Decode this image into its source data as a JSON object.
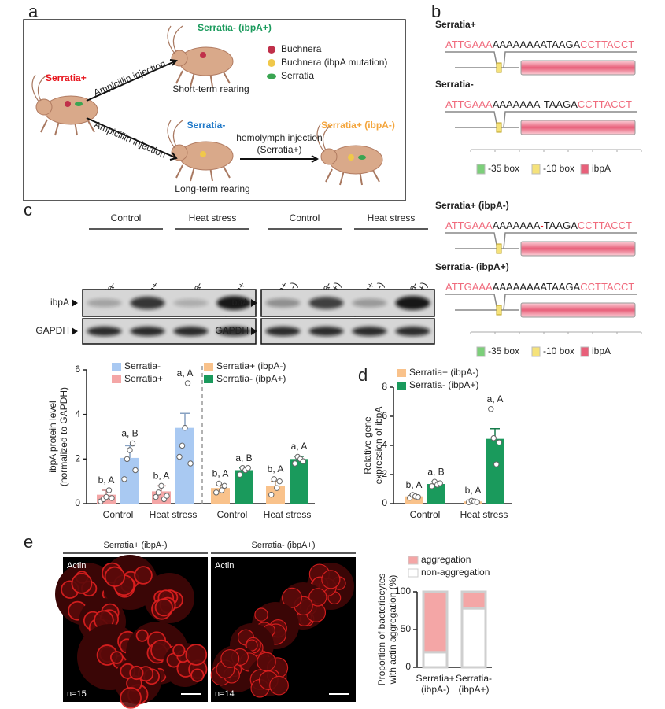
{
  "figure": {
    "panel_labels": [
      "a",
      "b",
      "c",
      "d",
      "e"
    ],
    "a": {
      "start": "Serratia+",
      "short_branch": "Ampicillin injection",
      "short_result": "Serratia- (ibpA+)",
      "short_rearing": "Short-term rearing",
      "long_branch": "Ampicillin injection",
      "long_result": "Serratia-",
      "long_rearing": "Long-term rearing",
      "injection": [
        "hemolymph injection",
        "(Serratia+)"
      ],
      "final": "Serratia+ (ibpA-)",
      "legend": [
        "Buchnera",
        "Buchnera (ibpA mutation)",
        "Serratia"
      ]
    },
    "b": {
      "strains": [
        {
          "name": "Serratia+",
          "color": "#e8141c",
          "sequence": [
            {
              "text": "ATTGAAA",
              "color": "#f06b7d"
            },
            {
              "text": "AAAAAAAATAAGA",
              "color": "#222222"
            },
            {
              "text": "CCTTACCT",
              "color": "#f06b7d"
            }
          ]
        },
        {
          "name": "Serratia-",
          "color": "#1f78c8",
          "sequence": [
            {
              "text": "ATTGAAA",
              "color": "#f06b7d"
            },
            {
              "text": "AAAAAAA",
              "color": "#222222"
            },
            {
              "text": "-",
              "color": "#e8141c"
            },
            {
              "text": "TAAGA",
              "color": "#222222"
            },
            {
              "text": "CCTTACCT",
              "color": "#f06b7d"
            }
          ]
        },
        {
          "name": "Serratia+ (ibpA-)",
          "color": "#f4a53c",
          "sequence": [
            {
              "text": "ATTGAAA",
              "color": "#f06b7d"
            },
            {
              "text": "AAAAAAA",
              "color": "#222222"
            },
            {
              "text": "-",
              "color": "#e8141c"
            },
            {
              "text": "TAAGA",
              "color": "#222222"
            },
            {
              "text": "CCTTACCT",
              "color": "#f06b7d"
            }
          ]
        },
        {
          "name": "Serratia- (ibpA+)",
          "color": "#1a9a5c",
          "sequence": [
            {
              "text": "ATTGAAA",
              "color": "#f06b7d"
            },
            {
              "text": "AAAAAAAATAAGA",
              "color": "#222222"
            },
            {
              "text": "CCTTACCT",
              "color": "#f06b7d"
            }
          ]
        }
      ],
      "legend": [
        "-35 box",
        "-10 box",
        "ibpA"
      ]
    },
    "c_blot": {
      "groups": [
        "Control",
        "Heat stress",
        "Control",
        "Heat stress"
      ],
      "lanes_left": [
        "Serratia-",
        "Serratia+",
        "Serratia-",
        "Serratia+"
      ],
      "lanes_right": [
        [
          "Serratia+",
          "(ibpA-)"
        ],
        [
          "Serratia-",
          "(ibpA+)"
        ],
        [
          "Serratia+",
          "(ibpA-)"
        ],
        [
          "Serratia-",
          "(ibpA+)"
        ]
      ],
      "rows": [
        "ibpA",
        "GAPDH"
      ]
    },
    "e_images": {
      "titles": [
        "Serratia+ (ibpA-)",
        "Serratia- (ibpA+)"
      ],
      "stain": "Actin",
      "counts": [
        "n=15",
        "n=14"
      ]
    }
  },
  "chart_data": [
    {
      "type": "bar",
      "ylabel": [
        "ibpA protein level",
        "(normalized to GAPDH)"
      ],
      "categories": [
        "Control",
        "Heat stress",
        "Control",
        "Heat stress"
      ],
      "ylim": [
        0,
        6
      ],
      "yticks": [
        0,
        2,
        4,
        6
      ],
      "series": [
        {
          "name": "Serratia+",
          "color": "#f4a6a6",
          "values": [
            0.4,
            0.55,
            null,
            null
          ],
          "errors": [
            0.2,
            0.25,
            null,
            null
          ],
          "points": [
            [
              0.1,
              0.2,
              0.3,
              0.6,
              0.25
            ],
            [
              0.3,
              0.5,
              0.8,
              0.2,
              0.35
            ],
            null,
            null
          ],
          "letters": [
            "b, A",
            "b, A",
            null,
            null
          ]
        },
        {
          "name": "Serratia-",
          "color": "#a9c9f2",
          "values": [
            2.05,
            3.4,
            null,
            null
          ],
          "errors": [
            0.55,
            0.65,
            null,
            null
          ],
          "points": [
            [
              1.1,
              2.0,
              2.4,
              2.7,
              1.5
            ],
            [
              2.1,
              2.6,
              3.4,
              5.4,
              1.8
            ],
            null,
            null
          ],
          "letters": [
            "a, B",
            "a, A",
            null,
            null
          ]
        },
        {
          "name": "Serratia+ (ibpA-)",
          "color": "#f9c28b",
          "values": [
            null,
            null,
            0.7,
            0.8
          ],
          "errors": [
            null,
            null,
            0.15,
            0.2
          ],
          "points": [
            null,
            null,
            [
              0.5,
              0.9,
              0.6,
              0.8
            ],
            [
              0.4,
              1.1,
              0.7,
              1.0
            ]
          ],
          "letters": [
            null,
            null,
            "b, A",
            "b, A"
          ]
        },
        {
          "name": "Serratia- (ibpA+)",
          "color": "#1a9a5c",
          "values": [
            null,
            null,
            1.5,
            2.0
          ],
          "errors": [
            null,
            null,
            0.1,
            0.12
          ],
          "points": [
            null,
            null,
            [
              1.3,
              1.6,
              1.5,
              1.6
            ],
            [
              1.8,
              2.1,
              2.0,
              1.9
            ]
          ],
          "letters": [
            null,
            null,
            "a, B",
            "a, A"
          ]
        }
      ]
    },
    {
      "type": "bar",
      "ylabel": [
        "Relative gene",
        "expression of ibpA"
      ],
      "categories": [
        "Control",
        "Heat stress"
      ],
      "ylim": [
        0,
        8
      ],
      "yticks": [
        0,
        2,
        4,
        6,
        8
      ],
      "series": [
        {
          "name": "Serratia+ (ibpA-)",
          "color": "#f9c28b",
          "values": [
            0.5,
            0.15
          ],
          "errors": [
            0.1,
            0.08
          ],
          "points": [
            [
              0.4,
              0.6,
              0.5,
              0.45
            ],
            [
              0.1,
              0.2,
              0.15,
              0.1
            ]
          ],
          "letters": [
            "b, A",
            "b, A"
          ]
        },
        {
          "name": "Serratia- (ibpA+)",
          "color": "#1a9a5c",
          "values": [
            1.35,
            4.45
          ],
          "errors": [
            0.15,
            0.7
          ],
          "points": [
            [
              1.2,
              1.5,
              1.3,
              1.4
            ],
            [
              6.5,
              4.5,
              2.7,
              4.2
            ]
          ],
          "letters": [
            "a, B",
            "a, A"
          ]
        }
      ]
    },
    {
      "type": "stacked_bar",
      "ylabel": [
        "Proportion of bacteriocytes",
        "with actin aggregation (%)"
      ],
      "categories": [
        [
          "Serratia+",
          "(ibpA-)"
        ],
        [
          "Serratia-",
          "(ibpA+)"
        ]
      ],
      "ylim": [
        0,
        100
      ],
      "yticks": [
        0,
        50,
        100
      ],
      "series": [
        {
          "name": "aggregation",
          "color": "#f4a6a6",
          "values": [
            80,
            22
          ]
        },
        {
          "name": "non-aggregation",
          "color": "#ffffff",
          "values": [
            20,
            78
          ]
        }
      ]
    }
  ]
}
